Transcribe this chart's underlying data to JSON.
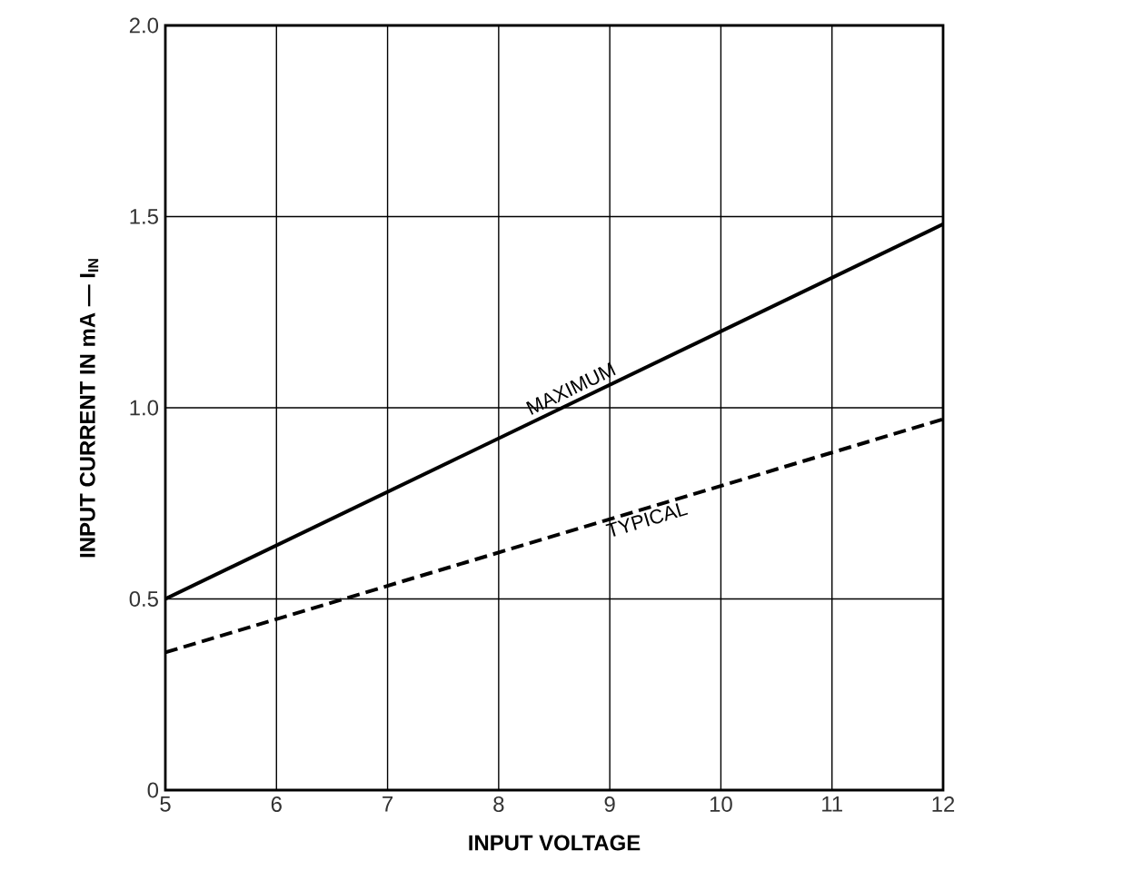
{
  "chart_data": {
    "type": "line",
    "xlabel": "INPUT VOLTAGE",
    "ylabel": "INPUT CURRENT IN mA — I$_{IN}$",
    "x": [
      5,
      12
    ],
    "series": [
      {
        "color": "#000000",
        "line_style": "solid",
        "values": [
          0.5,
          1.48
        ]
      },
      {
        "color": "#000000",
        "line_style": "dashed",
        "values": [
          0.36,
          0.97
        ]
      }
    ],
    "annotations": [
      {
        "text": "MAXIMUM",
        "x": 8.7,
        "y": 1.02
      },
      {
        "text": "TYPICAL",
        "x": 9.3,
        "y": 0.74
      }
    ],
    "xlim": [
      5,
      12
    ],
    "xticks": [
      5,
      6,
      7,
      8,
      9,
      10,
      11,
      12
    ],
    "ylim": [
      0,
      2
    ],
    "yticks": [
      0,
      0.5,
      {
        "value": 1,
        "label": "1.0"
      },
      1.5,
      {
        "value": 2,
        "label": "2.0"
      }
    ],
    "grid": true,
    "marker": "none",
    "legend": false
  }
}
